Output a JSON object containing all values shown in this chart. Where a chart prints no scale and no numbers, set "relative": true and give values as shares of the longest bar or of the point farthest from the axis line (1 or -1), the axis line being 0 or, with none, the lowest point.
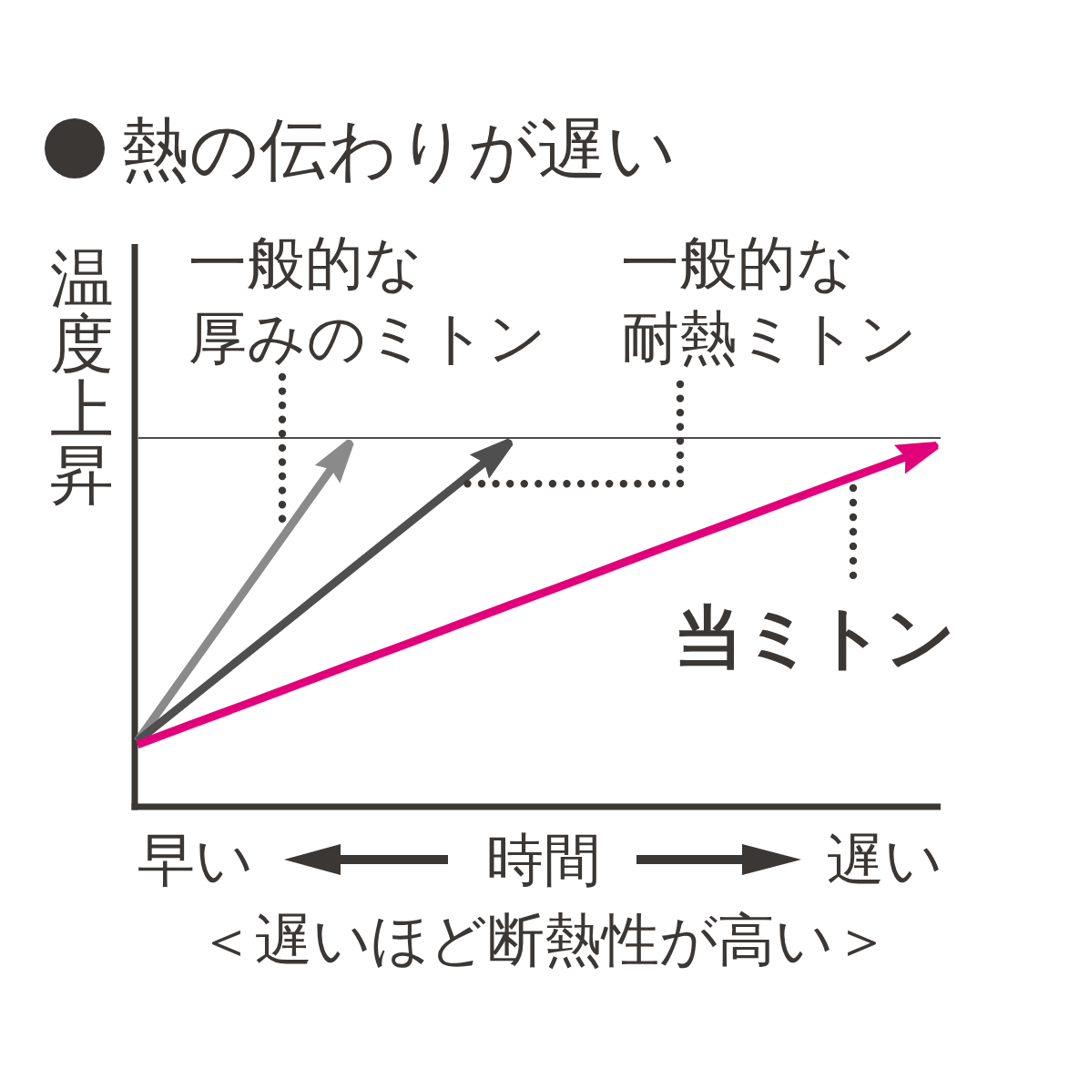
{
  "chart_data": {
    "type": "line",
    "title": "熱の伝わりが遅い",
    "xlabel": "時間",
    "ylabel": "温度上昇",
    "relative": true,
    "categories": [
      null,
      null,
      null,
      null,
      null,
      null,
      null,
      null,
      null,
      null,
      null,
      null,
      null,
      null,
      null,
      null
    ],
    "series": [
      {
        "name": "一般的な厚みのミトン",
        "color": "#8a8a8a",
        "values": [
          0.18,
          0.385,
          0.59,
          0.795,
          1,
          null,
          null,
          null,
          null,
          null,
          null,
          null,
          null,
          null,
          null,
          null
        ]
      },
      {
        "name": "一般的な耐熱ミトン",
        "color": "#4f4f4f",
        "values": [
          0.18,
          0.297,
          0.414,
          0.531,
          0.649,
          0.766,
          0.883,
          1,
          null,
          null,
          null,
          null,
          null,
          null,
          null,
          null
        ]
      },
      {
        "name": "当ミトン",
        "color": "#e2007a",
        "values": [
          0.17,
          0.225,
          0.279,
          0.334,
          0.389,
          0.443,
          0.498,
          0.553,
          0.607,
          0.662,
          0.717,
          0.771,
          0.826,
          0.881,
          0.935,
          0.99
        ]
      }
    ],
    "ref_lines": [
      {
        "axis": "y",
        "value": 1.01,
        "color": "#4d4d4d"
      }
    ],
    "annotations": [
      "早い",
      "遅い",
      "＜遅いほど断熱性が高い＞"
    ],
    "legend": false,
    "marker": "none",
    "line_style": "solid"
  }
}
